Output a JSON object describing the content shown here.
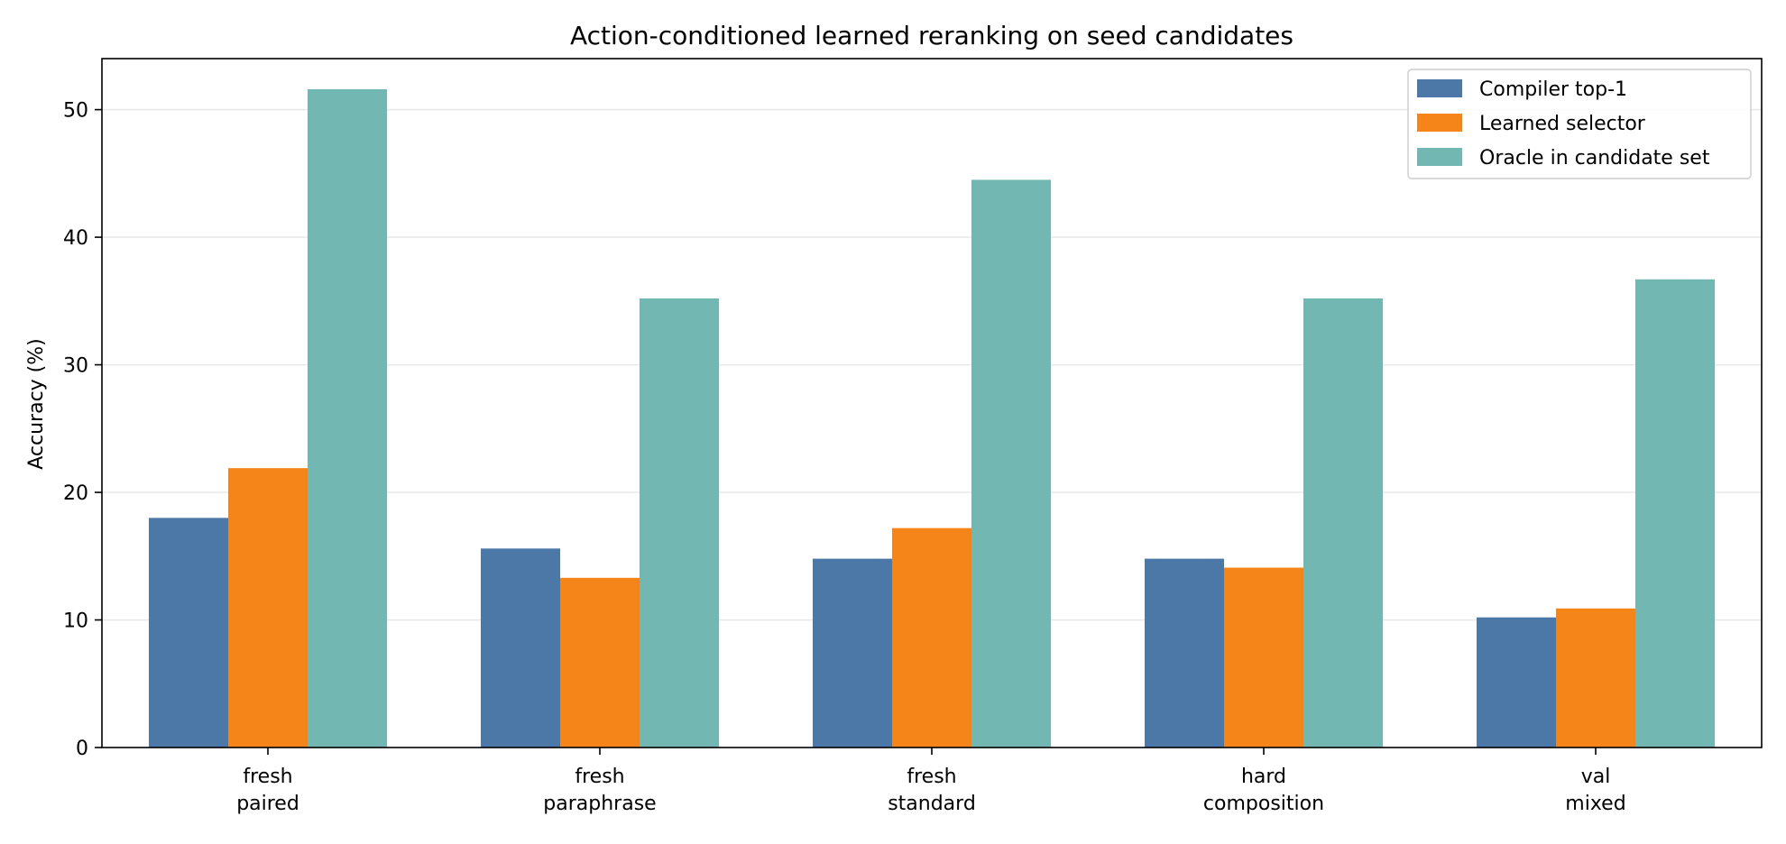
{
  "chart_data": {
    "type": "bar",
    "title": "Action-conditioned learned reranking on seed candidates",
    "xlabel": "",
    "ylabel": "Accuracy (%)",
    "ylim": [
      0,
      54
    ],
    "yticks": [
      0,
      10,
      20,
      30,
      40,
      50
    ],
    "grid": "y-major",
    "legend_position": "top-right",
    "categories": [
      [
        "fresh",
        "paired"
      ],
      [
        "fresh",
        "paraphrase"
      ],
      [
        "fresh",
        "standard"
      ],
      [
        "hard",
        "composition"
      ],
      [
        "val",
        "mixed"
      ]
    ],
    "series": [
      {
        "name": "Compiler top-1",
        "color": "#4c78a8",
        "values": [
          18.0,
          15.6,
          14.8,
          14.8,
          10.2
        ]
      },
      {
        "name": "Learned selector",
        "color": "#f58518",
        "values": [
          21.9,
          13.3,
          17.2,
          14.1,
          10.9
        ]
      },
      {
        "name": "Oracle in candidate set",
        "color": "#72b7b2",
        "values": [
          51.6,
          35.2,
          44.5,
          35.2,
          36.7
        ]
      }
    ]
  }
}
